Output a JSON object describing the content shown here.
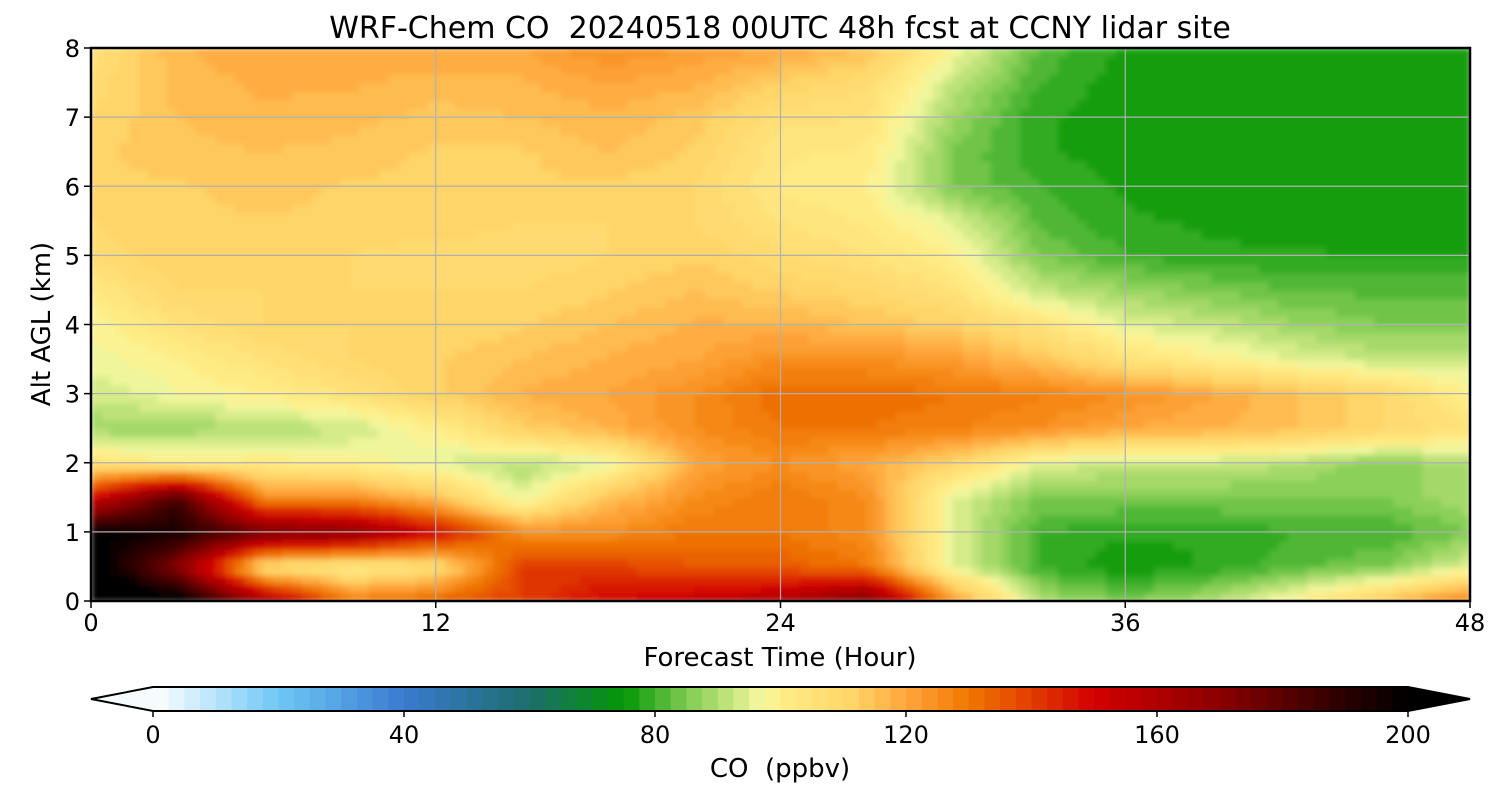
{
  "chart_data": {
    "type": "heatmap",
    "title": "WRF-Chem CO  20240518 00UTC 48h fcst at CCNY lidar site",
    "xlabel": "Forecast Time (Hour)",
    "ylabel": "Alt AGL (km)",
    "xlim": [
      0,
      48
    ],
    "ylim": [
      0,
      8
    ],
    "xticks": [
      0,
      12,
      24,
      36,
      48
    ],
    "yticks": [
      0,
      1,
      2,
      3,
      4,
      5,
      6,
      7,
      8
    ],
    "grid": true,
    "x": [
      0,
      3,
      6,
      9,
      12,
      15,
      18,
      21,
      24,
      27,
      30,
      33,
      36,
      39,
      42,
      45,
      48
    ],
    "y": [
      0,
      0.5,
      1,
      1.5,
      2,
      2.5,
      3,
      3.5,
      4,
      4.5,
      5,
      5.5,
      6,
      6.5,
      7,
      7.5,
      8
    ],
    "z": [
      [
        210,
        205,
        165,
        130,
        135,
        140,
        150,
        155,
        160,
        175,
        125,
        90,
        85,
        90,
        100,
        115,
        130
      ],
      [
        205,
        170,
        105,
        100,
        105,
        140,
        140,
        135,
        135,
        130,
        95,
        80,
        75,
        78,
        82,
        85,
        95
      ],
      [
        200,
        195,
        175,
        170,
        150,
        125,
        125,
        130,
        130,
        125,
        95,
        80,
        78,
        78,
        80,
        80,
        85
      ],
      [
        150,
        185,
        125,
        125,
        115,
        95,
        115,
        125,
        130,
        125,
        95,
        85,
        85,
        85,
        85,
        85,
        90
      ],
      [
        105,
        100,
        102,
        100,
        95,
        90,
        95,
        120,
        125,
        120,
        110,
        95,
        92,
        92,
        90,
        85,
        90
      ],
      [
        88,
        88,
        90,
        92,
        100,
        112,
        118,
        125,
        130,
        130,
        128,
        125,
        120,
        118,
        115,
        110,
        105
      ],
      [
        93,
        97,
        100,
        105,
        112,
        118,
        120,
        125,
        132,
        132,
        130,
        128,
        125,
        120,
        115,
        110,
        100
      ],
      [
        96,
        100,
        105,
        110,
        112,
        115,
        118,
        120,
        125,
        125,
        122,
        115,
        105,
        100,
        95,
        92,
        92
      ],
      [
        98,
        105,
        110,
        110,
        110,
        112,
        115,
        118,
        118,
        115,
        112,
        105,
        95,
        92,
        88,
        85,
        85
      ],
      [
        102,
        110,
        110,
        110,
        110,
        110,
        112,
        115,
        112,
        110,
        105,
        92,
        88,
        85,
        82,
        82,
        82
      ],
      [
        108,
        112,
        112,
        110,
        108,
        108,
        110,
        112,
        108,
        105,
        100,
        85,
        80,
        78,
        78,
        77,
        77
      ],
      [
        110,
        112,
        112,
        112,
        112,
        110,
        110,
        110,
        105,
        102,
        95,
        82,
        78,
        77,
        76,
        76,
        76
      ],
      [
        112,
        112,
        114,
        112,
        112,
        112,
        112,
        110,
        102,
        100,
        85,
        80,
        77,
        76,
        76,
        76,
        76
      ],
      [
        112,
        114,
        115,
        114,
        112,
        112,
        115,
        112,
        103,
        102,
        85,
        78,
        76,
        76,
        76,
        76,
        76
      ],
      [
        110,
        115,
        117,
        116,
        114,
        115,
        117,
        114,
        106,
        105,
        88,
        78,
        76,
        76,
        76,
        76,
        76
      ],
      [
        108,
        116,
        118,
        118,
        116,
        117,
        120,
        118,
        112,
        108,
        92,
        80,
        76,
        76,
        76,
        76,
        76
      ],
      [
        106,
        117,
        120,
        120,
        120,
        120,
        125,
        122,
        120,
        115,
        98,
        82,
        77,
        76,
        76,
        76,
        76
      ]
    ],
    "colorbar": {
      "label": "CO  (ppbv)",
      "ticks": [
        0,
        40,
        80,
        120,
        160,
        200
      ],
      "min": 0,
      "max": 200,
      "step": 2.5,
      "extend": "both",
      "colors": [
        {
          "v": 0,
          "c": "#ffffff"
        },
        {
          "v": 20,
          "c": "#6ec8f5"
        },
        {
          "v": 40,
          "c": "#3a7ad0"
        },
        {
          "v": 60,
          "c": "#1c6e6c"
        },
        {
          "v": 75,
          "c": "#049604"
        },
        {
          "v": 85,
          "c": "#7ecb50"
        },
        {
          "v": 97,
          "c": "#f6f8a0"
        },
        {
          "v": 100,
          "c": "#ffee88"
        },
        {
          "v": 112,
          "c": "#ffd266"
        },
        {
          "v": 120,
          "c": "#ffa63c"
        },
        {
          "v": 130,
          "c": "#f07800"
        },
        {
          "v": 150,
          "c": "#d20000"
        },
        {
          "v": 170,
          "c": "#8a0000"
        },
        {
          "v": 190,
          "c": "#2a0000"
        },
        {
          "v": 200,
          "c": "#000000"
        }
      ]
    }
  }
}
